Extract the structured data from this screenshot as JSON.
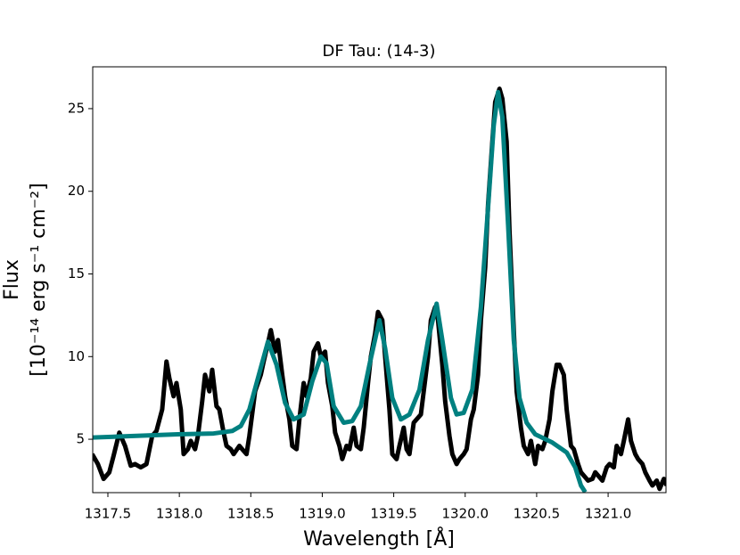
{
  "chart_data": {
    "type": "line",
    "title": "DF Tau: (14-3)",
    "xlabel": "Wavelength [Å]",
    "ylabel": [
      "Flux",
      "[10⁻¹⁴ erg s⁻¹ cm⁻²]"
    ],
    "xlim": [
      1317.394,
      1321.405
    ],
    "ylim": [
      1.77,
      27.53
    ],
    "xticks": [
      1317.5,
      {
        "value": 1318,
        "label": "1318.0"
      },
      1318.5,
      {
        "value": 1319,
        "label": "1319.0"
      },
      1319.5,
      {
        "value": 1320,
        "label": "1320.0"
      },
      1320.5,
      {
        "value": 1321,
        "label": "1321.0"
      }
    ],
    "yticks": [
      5,
      10,
      15,
      20,
      25
    ],
    "grid": false,
    "series": [
      {
        "color": "#000000",
        "x": [
          1317.39,
          1317.43,
          1317.47,
          1317.51,
          1317.54,
          1317.58,
          1317.62,
          1317.66,
          1317.69,
          1317.73,
          1317.77,
          1317.81,
          1317.84,
          1317.88,
          1317.91,
          1317.93,
          1317.96,
          1317.98,
          1318.01,
          1318.03,
          1318.06,
          1318.08,
          1318.11,
          1318.13,
          1318.16,
          1318.18,
          1318.21,
          1318.23,
          1318.26,
          1318.28,
          1318.31,
          1318.33,
          1318.36,
          1318.38,
          1318.42,
          1318.44,
          1318.47,
          1318.49,
          1318.53,
          1318.57,
          1318.59,
          1318.62,
          1318.64,
          1318.67,
          1318.69,
          1318.72,
          1318.74,
          1318.77,
          1318.79,
          1318.82,
          1318.84,
          1318.87,
          1318.89,
          1318.92,
          1318.94,
          1318.97,
          1318.99,
          1319.02,
          1319.04,
          1319.07,
          1319.09,
          1319.12,
          1319.14,
          1319.17,
          1319.19,
          1319.22,
          1319.24,
          1319.27,
          1319.29,
          1319.32,
          1319.34,
          1319.37,
          1319.39,
          1319.42,
          1319.44,
          1319.47,
          1319.49,
          1319.52,
          1319.54,
          1319.57,
          1319.59,
          1319.61,
          1319.64,
          1319.66,
          1319.69,
          1319.71,
          1319.74,
          1319.76,
          1319.79,
          1319.81,
          1319.84,
          1319.86,
          1319.89,
          1319.91,
          1319.94,
          1319.96,
          1319.99,
          1320.01,
          1320.04,
          1320.06,
          1320.09,
          1320.11,
          1320.14,
          1320.16,
          1320.19,
          1320.21,
          1320.24,
          1320.26,
          1320.29,
          1320.31,
          1320.34,
          1320.36,
          1320.39,
          1320.41,
          1320.44,
          1320.46,
          1320.49,
          1320.51,
          1320.54,
          1320.56,
          1320.59,
          1320.61,
          1320.64,
          1320.66,
          1320.69,
          1320.71,
          1320.74,
          1320.76,
          1320.79,
          1320.81,
          1320.84,
          1320.86,
          1320.89,
          1320.91,
          1320.94,
          1320.96,
          1320.99,
          1321.01,
          1321.04,
          1321.06,
          1321.09,
          1321.11,
          1321.14,
          1321.16,
          1321.19,
          1321.21,
          1321.24,
          1321.26,
          1321.29,
          1321.31,
          1321.34,
          1321.36,
          1321.39,
          1321.41
        ],
        "values": [
          4.1,
          3.5,
          2.6,
          3.0,
          4.0,
          5.4,
          4.6,
          3.4,
          3.5,
          3.3,
          3.5,
          5.2,
          5.5,
          6.8,
          9.7,
          8.7,
          7.6,
          8.4,
          6.8,
          4.1,
          4.4,
          4.9,
          4.4,
          5.2,
          7.3,
          8.9,
          7.9,
          9.2,
          7.0,
          6.8,
          5.4,
          4.6,
          4.4,
          4.1,
          4.6,
          4.4,
          4.1,
          5.2,
          7.9,
          8.9,
          9.7,
          10.8,
          11.6,
          10.3,
          11.0,
          8.9,
          7.6,
          6.2,
          4.6,
          4.4,
          6.2,
          8.4,
          7.6,
          8.7,
          10.3,
          10.8,
          10.0,
          10.3,
          8.4,
          7.0,
          5.4,
          4.6,
          3.8,
          4.6,
          4.4,
          5.7,
          4.6,
          4.4,
          5.7,
          8.4,
          10.0,
          11.4,
          12.7,
          12.2,
          10.0,
          6.8,
          4.1,
          3.8,
          4.6,
          5.7,
          4.4,
          4.1,
          6.0,
          6.2,
          6.5,
          7.9,
          10.0,
          12.2,
          13.0,
          12.2,
          9.5,
          7.3,
          5.2,
          4.1,
          3.5,
          3.8,
          4.1,
          4.4,
          6.2,
          6.8,
          8.9,
          12.2,
          15.4,
          19.2,
          23.0,
          25.4,
          26.2,
          25.6,
          23.0,
          17.6,
          11.6,
          7.9,
          5.7,
          4.6,
          4.1,
          4.9,
          3.5,
          4.6,
          4.4,
          4.9,
          6.2,
          7.9,
          9.5,
          9.5,
          8.9,
          6.8,
          4.6,
          4.4,
          3.5,
          3.0,
          2.7,
          2.5,
          2.6,
          3.0,
          2.7,
          2.5,
          3.3,
          3.5,
          3.3,
          4.6,
          4.1,
          4.9,
          6.2,
          4.9,
          4.1,
          3.8,
          3.5,
          3.0,
          2.5,
          2.2,
          2.5,
          2.0,
          2.6,
          2.2
        ]
      },
      {
        "color": "#008080",
        "x": [
          1317.39,
          1317.68,
          1317.99,
          1318.24,
          1318.37,
          1318.43,
          1318.49,
          1318.55,
          1318.62,
          1318.68,
          1318.74,
          1318.8,
          1318.87,
          1318.93,
          1318.99,
          1319.03,
          1319.08,
          1319.15,
          1319.21,
          1319.27,
          1319.33,
          1319.4,
          1319.44,
          1319.49,
          1319.55,
          1319.61,
          1319.68,
          1319.74,
          1319.8,
          1319.84,
          1319.9,
          1319.94,
          1319.99,
          1320.05,
          1320.11,
          1320.16,
          1320.2,
          1320.23,
          1320.26,
          1320.3,
          1320.34,
          1320.38,
          1320.43,
          1320.49,
          1320.61,
          1320.71,
          1320.77,
          1320.81,
          1320.84
        ],
        "values": [
          5.1,
          5.2,
          5.3,
          5.35,
          5.5,
          5.8,
          6.8,
          8.7,
          10.9,
          9.5,
          7.2,
          6.2,
          6.5,
          8.5,
          10.0,
          9.6,
          7.0,
          6.0,
          6.1,
          7.0,
          9.5,
          12.2,
          10.5,
          7.5,
          6.2,
          6.5,
          8.0,
          11.0,
          13.2,
          11.0,
          7.5,
          6.5,
          6.6,
          8.0,
          13.0,
          19.0,
          24.0,
          26.0,
          24.5,
          18.0,
          11.0,
          7.5,
          6.0,
          5.3,
          4.8,
          4.2,
          3.3,
          2.2,
          1.8
        ]
      }
    ]
  }
}
